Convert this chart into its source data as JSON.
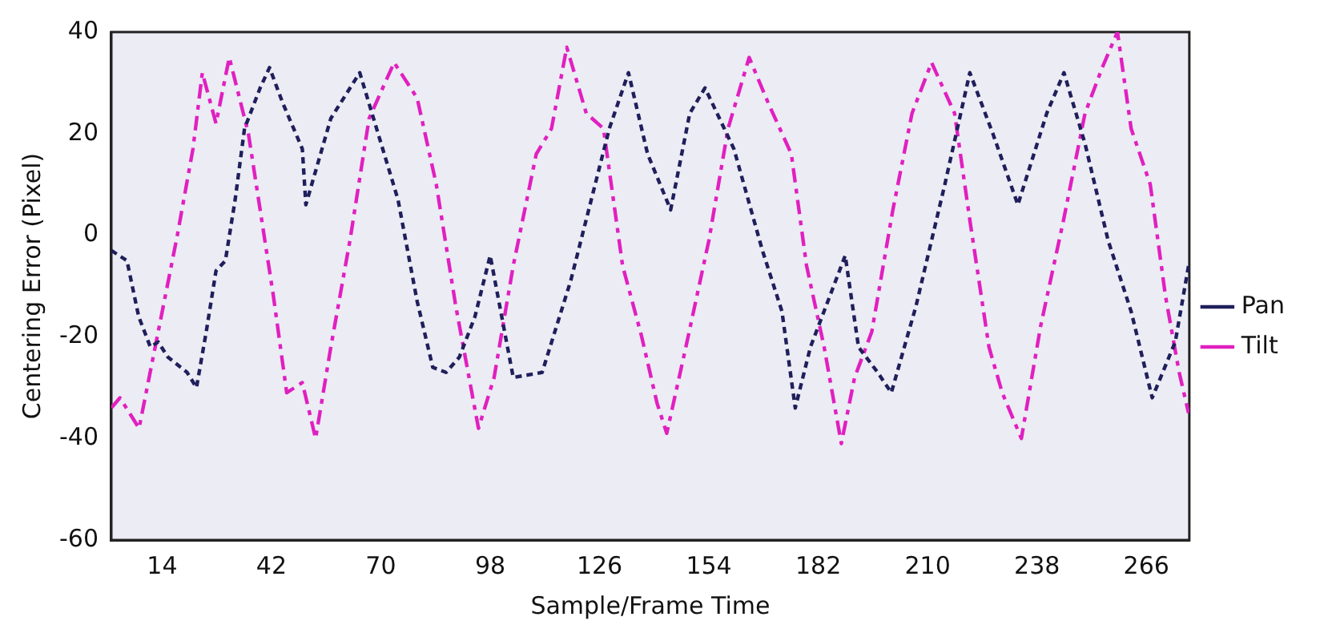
{
  "chart_data": {
    "type": "line",
    "xlabel": "Sample/Frame Time",
    "ylabel": "Centering Error (Pixel)",
    "xlim": [
      1,
      277
    ],
    "xticks": [
      14,
      42,
      70,
      98,
      126,
      154,
      182,
      210,
      238,
      266
    ],
    "ylim": [
      -60,
      40
    ],
    "yticks": [
      -60,
      -40,
      -20,
      0,
      20,
      40
    ],
    "grid": false,
    "legend": "right",
    "marker": "none",
    "series": [
      {
        "name": "Pan",
        "color": "#1f1f5c",
        "line_style": "dotted",
        "x": [
          1,
          5,
          8,
          11,
          13,
          15.5,
          20.4,
          22.8,
          25.3,
          27.8,
          30.2,
          32.7,
          35.1,
          39.1,
          41.5,
          44.9,
          49.9,
          50.8,
          57.2,
          64.6,
          74.4,
          79.3,
          83.3,
          86.7,
          90.1,
          94.1,
          98,
          103.9,
          111.3,
          118.6,
          128.5,
          133.4,
          138.3,
          144.2,
          149.1,
          153,
          160.4,
          167.7,
          172.7,
          176.1,
          180,
          188.9,
          192.3,
          197.2,
          200.7,
          207,
          214.4,
          220.8,
          226.7,
          233.1,
          240.5,
          244.9,
          250.3,
          256.2,
          262.1,
          267.5,
          273.4,
          276.8
        ],
        "values": [
          -3,
          -5,
          -16,
          -22,
          -21,
          -24,
          -27,
          -30,
          -19,
          -7,
          -5,
          7,
          21,
          29,
          33,
          26,
          17,
          6,
          23,
          32,
          7,
          -13,
          -26,
          -27,
          -24,
          -16,
          -4,
          -28,
          -27,
          -9,
          21,
          32,
          16,
          5,
          24,
          29,
          17,
          -3,
          -15,
          -34,
          -22,
          -4,
          -22,
          -27,
          -31,
          -14,
          10,
          32,
          20,
          6,
          24,
          32,
          18,
          -1,
          -15,
          -32,
          -21,
          -6
        ]
      },
      {
        "name": "Tilt",
        "color": "#e020c0",
        "line_style": "dashed",
        "x": [
          1,
          3.2,
          8.1,
          13,
          17.9,
          21.9,
          24.3,
          27.8,
          31.2,
          36.1,
          42.5,
          45.9,
          49.9,
          53.3,
          57.2,
          62.1,
          67,
          73.4,
          79.3,
          84.2,
          89.2,
          95,
          99,
          103.9,
          109.8,
          113.7,
          117.6,
          122.6,
          127,
          131.9,
          136.8,
          140.7,
          143.2,
          148.1,
          154,
          158.9,
          164.3,
          169.2,
          175.1,
          179,
          183.5,
          187.9,
          191.3,
          195.7,
          201.1,
          206,
          211,
          216.9,
          220.8,
          225.7,
          229.1,
          234,
          238.9,
          244.8,
          250.3,
          254.7,
          258.6,
          262.1,
          267,
          270.9,
          274.4,
          276.8
        ],
        "values": [
          -34,
          -32,
          -38,
          -19,
          0,
          17,
          32,
          22,
          35,
          20,
          -12,
          -31,
          -29,
          -40,
          -22,
          -1,
          23,
          34,
          27,
          10,
          -14,
          -38,
          -28,
          -6,
          16,
          21,
          37,
          24,
          21,
          -6,
          -20,
          -33,
          -39,
          -22,
          -1,
          21,
          35,
          26,
          16,
          -6,
          -22,
          -41,
          -28,
          -19,
          5,
          24,
          34,
          24,
          3,
          -22,
          -31,
          -40,
          -18,
          3,
          24,
          33,
          40,
          21,
          10,
          -12,
          -27,
          -35
        ]
      }
    ]
  }
}
